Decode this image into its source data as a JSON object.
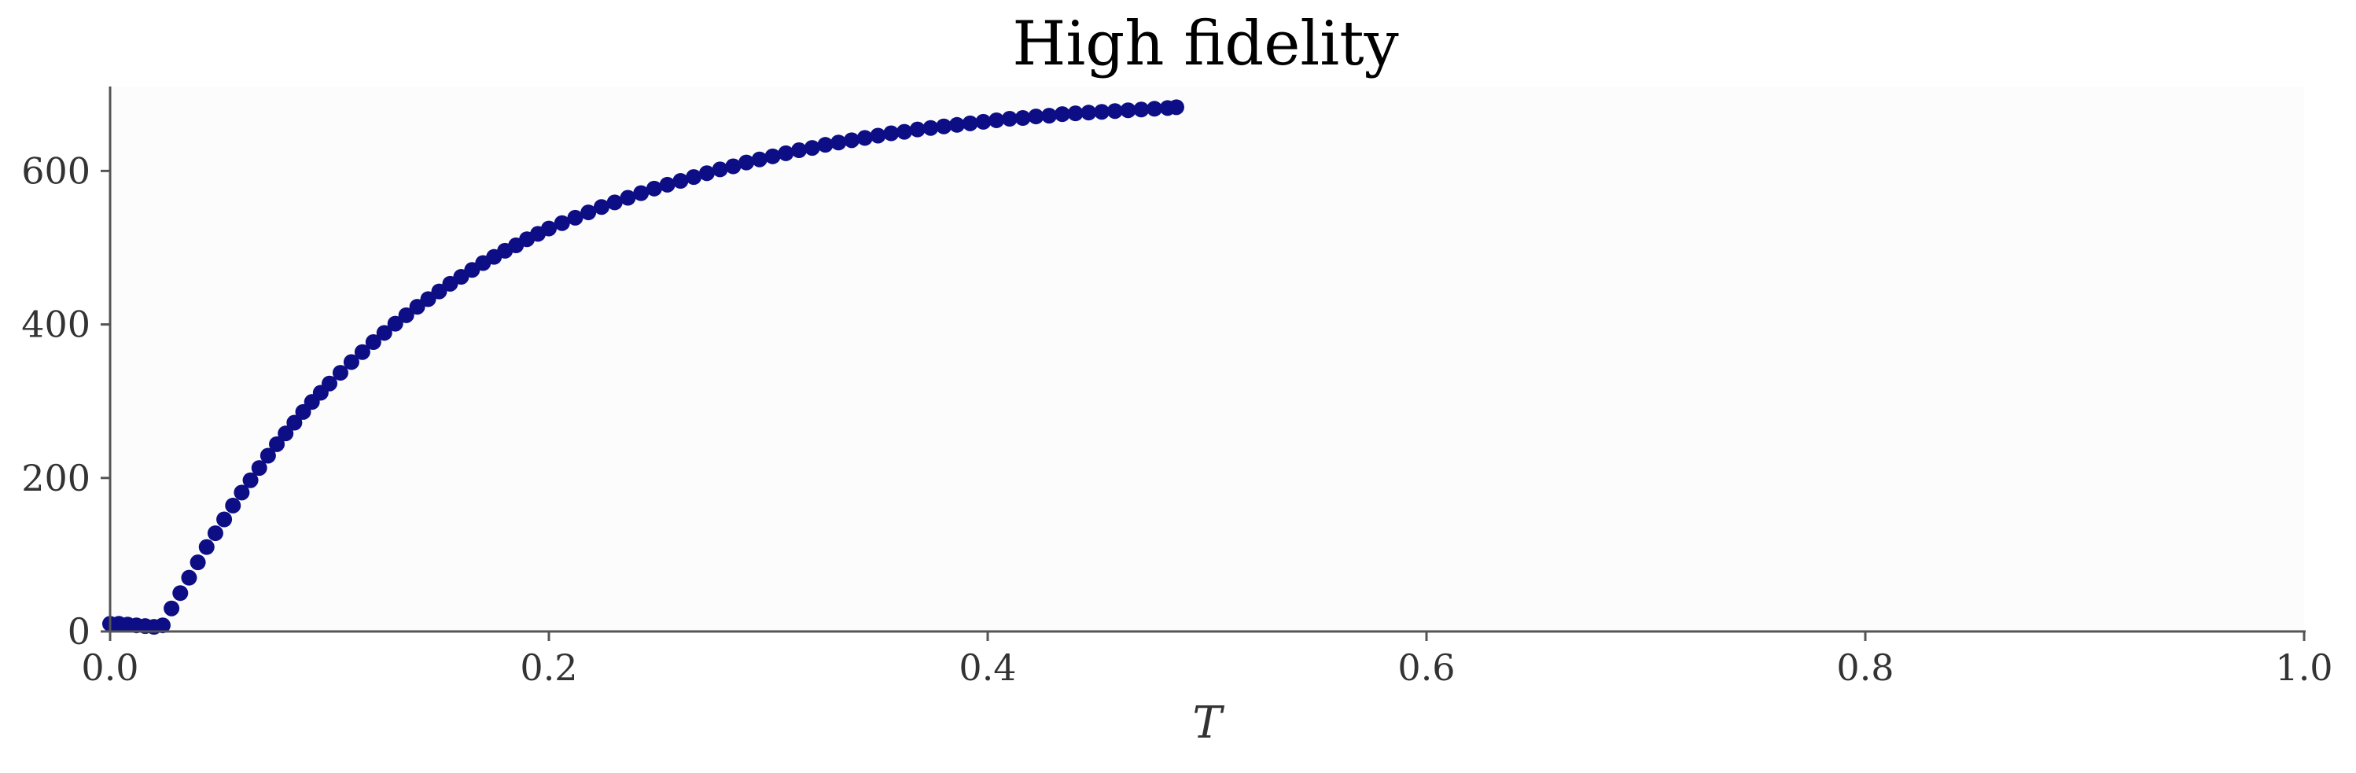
{
  "chart_data": {
    "type": "scatter",
    "title": "High fidelity",
    "xlabel": "T",
    "ylabel": "",
    "xlim": [
      0.0,
      1.0
    ],
    "ylim": [
      0,
      710
    ],
    "xticks": [
      0.0,
      0.2,
      0.4,
      0.6,
      0.8,
      1.0
    ],
    "xtick_labels": [
      "0.0",
      "0.2",
      "0.4",
      "0.6",
      "0.8",
      "1.0"
    ],
    "yticks": [
      0,
      200,
      400,
      600
    ],
    "ytick_labels": [
      "0",
      "200",
      "400",
      "600"
    ],
    "grid": false,
    "series": [
      {
        "marker_color": "#0d0d85",
        "points": [
          {
            "x": 0.0,
            "y": 10
          },
          {
            "x": 0.004,
            "y": 10
          },
          {
            "x": 0.008,
            "y": 9
          },
          {
            "x": 0.012,
            "y": 8
          },
          {
            "x": 0.016,
            "y": 7
          },
          {
            "x": 0.02,
            "y": 6
          },
          {
            "x": 0.024,
            "y": 8
          },
          {
            "x": 0.028,
            "y": 30
          },
          {
            "x": 0.032,
            "y": 50
          },
          {
            "x": 0.036,
            "y": 70
          },
          {
            "x": 0.04,
            "y": 90
          },
          {
            "x": 0.044,
            "y": 110
          },
          {
            "x": 0.048,
            "y": 128
          },
          {
            "x": 0.052,
            "y": 146
          },
          {
            "x": 0.056,
            "y": 164
          },
          {
            "x": 0.06,
            "y": 181
          },
          {
            "x": 0.064,
            "y": 197
          },
          {
            "x": 0.068,
            "y": 213
          },
          {
            "x": 0.072,
            "y": 229
          },
          {
            "x": 0.076,
            "y": 244
          },
          {
            "x": 0.08,
            "y": 258
          },
          {
            "x": 0.084,
            "y": 272
          },
          {
            "x": 0.088,
            "y": 286
          },
          {
            "x": 0.092,
            "y": 299
          },
          {
            "x": 0.096,
            "y": 311
          },
          {
            "x": 0.1,
            "y": 323
          },
          {
            "x": 0.105,
            "y": 337
          },
          {
            "x": 0.11,
            "y": 351
          },
          {
            "x": 0.115,
            "y": 364
          },
          {
            "x": 0.12,
            "y": 377
          },
          {
            "x": 0.125,
            "y": 389
          },
          {
            "x": 0.13,
            "y": 401
          },
          {
            "x": 0.135,
            "y": 412
          },
          {
            "x": 0.14,
            "y": 423
          },
          {
            "x": 0.145,
            "y": 433
          },
          {
            "x": 0.15,
            "y": 443
          },
          {
            "x": 0.155,
            "y": 453
          },
          {
            "x": 0.16,
            "y": 462
          },
          {
            "x": 0.165,
            "y": 471
          },
          {
            "x": 0.17,
            "y": 480
          },
          {
            "x": 0.175,
            "y": 488
          },
          {
            "x": 0.18,
            "y": 496
          },
          {
            "x": 0.185,
            "y": 503
          },
          {
            "x": 0.19,
            "y": 511
          },
          {
            "x": 0.195,
            "y": 518
          },
          {
            "x": 0.2,
            "y": 525
          },
          {
            "x": 0.206,
            "y": 532
          },
          {
            "x": 0.212,
            "y": 539
          },
          {
            "x": 0.218,
            "y": 546
          },
          {
            "x": 0.224,
            "y": 553
          },
          {
            "x": 0.23,
            "y": 559
          },
          {
            "x": 0.236,
            "y": 565
          },
          {
            "x": 0.242,
            "y": 571
          },
          {
            "x": 0.248,
            "y": 577
          },
          {
            "x": 0.254,
            "y": 582
          },
          {
            "x": 0.26,
            "y": 587
          },
          {
            "x": 0.266,
            "y": 592
          },
          {
            "x": 0.272,
            "y": 597
          },
          {
            "x": 0.278,
            "y": 602
          },
          {
            "x": 0.284,
            "y": 606
          },
          {
            "x": 0.29,
            "y": 611
          },
          {
            "x": 0.296,
            "y": 615
          },
          {
            "x": 0.302,
            "y": 619
          },
          {
            "x": 0.308,
            "y": 623
          },
          {
            "x": 0.314,
            "y": 627
          },
          {
            "x": 0.32,
            "y": 630
          },
          {
            "x": 0.326,
            "y": 634
          },
          {
            "x": 0.332,
            "y": 637
          },
          {
            "x": 0.338,
            "y": 640
          },
          {
            "x": 0.344,
            "y": 643
          },
          {
            "x": 0.35,
            "y": 646
          },
          {
            "x": 0.356,
            "y": 649
          },
          {
            "x": 0.362,
            "y": 651
          },
          {
            "x": 0.368,
            "y": 654
          },
          {
            "x": 0.374,
            "y": 656
          },
          {
            "x": 0.38,
            "y": 658
          },
          {
            "x": 0.386,
            "y": 660
          },
          {
            "x": 0.392,
            "y": 662
          },
          {
            "x": 0.398,
            "y": 664
          },
          {
            "x": 0.404,
            "y": 666
          },
          {
            "x": 0.41,
            "y": 668
          },
          {
            "x": 0.416,
            "y": 669
          },
          {
            "x": 0.422,
            "y": 671
          },
          {
            "x": 0.428,
            "y": 672
          },
          {
            "x": 0.434,
            "y": 674
          },
          {
            "x": 0.44,
            "y": 675
          },
          {
            "x": 0.446,
            "y": 676
          },
          {
            "x": 0.452,
            "y": 677
          },
          {
            "x": 0.458,
            "y": 678
          },
          {
            "x": 0.464,
            "y": 679
          },
          {
            "x": 0.47,
            "y": 680
          },
          {
            "x": 0.476,
            "y": 681
          },
          {
            "x": 0.482,
            "y": 682
          },
          {
            "x": 0.486,
            "y": 683
          }
        ]
      }
    ]
  },
  "colors": {
    "marker": "#0d0d85",
    "plot_background": "#fcfcfd",
    "axis": "#555555",
    "text": "#333333",
    "title": "#000000"
  }
}
